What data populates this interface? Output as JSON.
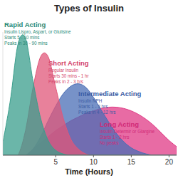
{
  "chart_data": {
    "type": "area",
    "title": "Types of Insulin",
    "x_label": "Time (Hours)",
    "x": [
      -2,
      -1,
      0,
      1,
      2,
      3,
      4,
      5,
      6,
      7,
      8,
      9,
      10,
      11,
      12,
      13,
      14,
      15,
      16,
      17,
      18,
      19,
      20,
      21
    ],
    "series": [
      {
        "name": "Rapid Acting",
        "color": "#3a9e8c",
        "values": [
          0.1,
          0.45,
          0.9,
          0.95,
          0.6,
          0.3,
          0.12,
          0.04,
          0.01,
          0,
          0,
          0,
          0,
          0,
          0,
          0,
          0,
          0,
          0,
          0,
          0,
          0,
          0,
          0
        ]
      },
      {
        "name": "Short Acting",
        "color": "#e0577a",
        "values": [
          0,
          0,
          0,
          0.2,
          0.55,
          0.8,
          0.8,
          0.55,
          0.3,
          0.13,
          0.05,
          0.01,
          0,
          0,
          0,
          0,
          0,
          0,
          0,
          0,
          0,
          0,
          0,
          0
        ]
      },
      {
        "name": "Intermediate Acting",
        "color": "#4a6db5",
        "values": [
          0,
          0,
          0,
          0,
          0.05,
          0.15,
          0.28,
          0.4,
          0.5,
          0.56,
          0.58,
          0.55,
          0.47,
          0.37,
          0.27,
          0.18,
          0.11,
          0.06,
          0.03,
          0.01,
          0,
          0,
          0,
          0
        ]
      },
      {
        "name": "Long Acting",
        "color": "#e03a85",
        "values": [
          0,
          0,
          0,
          0,
          0.05,
          0.1,
          0.15,
          0.2,
          0.24,
          0.28,
          0.31,
          0.34,
          0.36,
          0.38,
          0.39,
          0.39,
          0.38,
          0.36,
          0.33,
          0.29,
          0.24,
          0.18,
          0.12,
          0.07
        ]
      }
    ],
    "annotations": [
      {
        "title": "Rapid Acting",
        "lines": [
          "Insulin Lispro, Aspart, or Glulisine",
          "Starts 5 - 10 mins",
          "Peaks in 30 - 90 mins"
        ]
      },
      {
        "title": "Short Acting",
        "lines": [
          "Regular Insulin",
          "Starts 30 mins - 1 hr",
          "Peaks in 2 - 3 hrs"
        ]
      },
      {
        "title": "Intermediate Acting",
        "lines": [
          "Insulin NPH",
          "Starts 1 - 3 hrs",
          "Peaks in 4 - 12 hrs"
        ]
      },
      {
        "title": "Long Acting",
        "lines": [
          "Insulin Determir or Glargine",
          "Starts 1 - 2 hrs",
          "No peaks"
        ]
      }
    ],
    "xlim": [
      -2,
      21
    ],
    "ylim": [
      0,
      1
    ],
    "xticks": [
      5,
      10,
      15,
      20
    ],
    "grid": false,
    "tick_labels": "x"
  }
}
